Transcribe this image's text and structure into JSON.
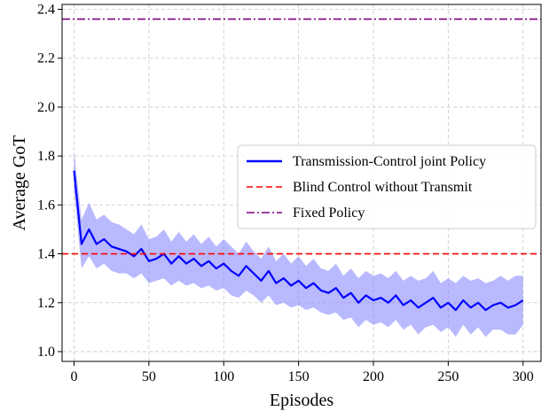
{
  "chart_data": {
    "type": "line",
    "xlabel": "Episodes",
    "ylabel": "Average GoT",
    "xlim": [
      -8,
      312
    ],
    "ylim": [
      0.96,
      2.42
    ],
    "xticks": [
      0,
      50,
      100,
      150,
      200,
      250,
      300
    ],
    "xtick_labels": [
      "0",
      "50",
      "100",
      "150",
      "200",
      "250",
      "300"
    ],
    "yticks": [
      1.0,
      1.2,
      1.4,
      1.6,
      1.8,
      2.0,
      2.2,
      2.4
    ],
    "ytick_labels": [
      "1.0",
      "1.2",
      "1.4",
      "1.6",
      "1.8",
      "2.0",
      "2.2",
      "2.4"
    ],
    "grid": true,
    "legend_position": "center-right",
    "series": [
      {
        "name": "Transmission-Control joint Policy",
        "style": "solid",
        "color": "#0000ff",
        "band_color": "#7f7fff",
        "x": [
          0,
          5,
          10,
          15,
          20,
          25,
          30,
          35,
          40,
          45,
          50,
          55,
          60,
          65,
          70,
          75,
          80,
          85,
          90,
          95,
          100,
          105,
          110,
          115,
          120,
          125,
          130,
          135,
          140,
          145,
          150,
          155,
          160,
          165,
          170,
          175,
          180,
          185,
          190,
          195,
          200,
          205,
          210,
          215,
          220,
          225,
          230,
          235,
          240,
          245,
          250,
          255,
          260,
          265,
          270,
          275,
          280,
          285,
          290,
          295,
          300
        ],
        "y": [
          1.74,
          1.44,
          1.5,
          1.44,
          1.46,
          1.43,
          1.42,
          1.41,
          1.39,
          1.42,
          1.37,
          1.38,
          1.4,
          1.36,
          1.39,
          1.36,
          1.38,
          1.35,
          1.37,
          1.34,
          1.36,
          1.33,
          1.31,
          1.35,
          1.32,
          1.29,
          1.33,
          1.28,
          1.3,
          1.27,
          1.29,
          1.26,
          1.28,
          1.25,
          1.24,
          1.26,
          1.22,
          1.24,
          1.2,
          1.23,
          1.21,
          1.22,
          1.2,
          1.23,
          1.19,
          1.21,
          1.18,
          1.2,
          1.22,
          1.18,
          1.2,
          1.17,
          1.21,
          1.18,
          1.2,
          1.17,
          1.19,
          1.2,
          1.18,
          1.19,
          1.21
        ],
        "band_half_width": [
          0.08,
          0.1,
          0.11,
          0.1,
          0.1,
          0.1,
          0.1,
          0.09,
          0.09,
          0.1,
          0.09,
          0.09,
          0.1,
          0.09,
          0.1,
          0.09,
          0.1,
          0.09,
          0.1,
          0.09,
          0.1,
          0.1,
          0.09,
          0.1,
          0.09,
          0.09,
          0.1,
          0.09,
          0.1,
          0.09,
          0.1,
          0.09,
          0.1,
          0.09,
          0.09,
          0.1,
          0.09,
          0.1,
          0.1,
          0.1,
          0.1,
          0.1,
          0.1,
          0.1,
          0.1,
          0.1,
          0.11,
          0.1,
          0.11,
          0.1,
          0.1,
          0.11,
          0.1,
          0.11,
          0.1,
          0.11,
          0.1,
          0.11,
          0.11,
          0.12,
          0.1
        ]
      },
      {
        "name": "Blind Control without Transmit",
        "style": "dashed",
        "color": "#ff0000",
        "value": 1.4
      },
      {
        "name": "Fixed Policy",
        "style": "dashdot",
        "color": "#800080",
        "value": 2.36
      }
    ]
  }
}
